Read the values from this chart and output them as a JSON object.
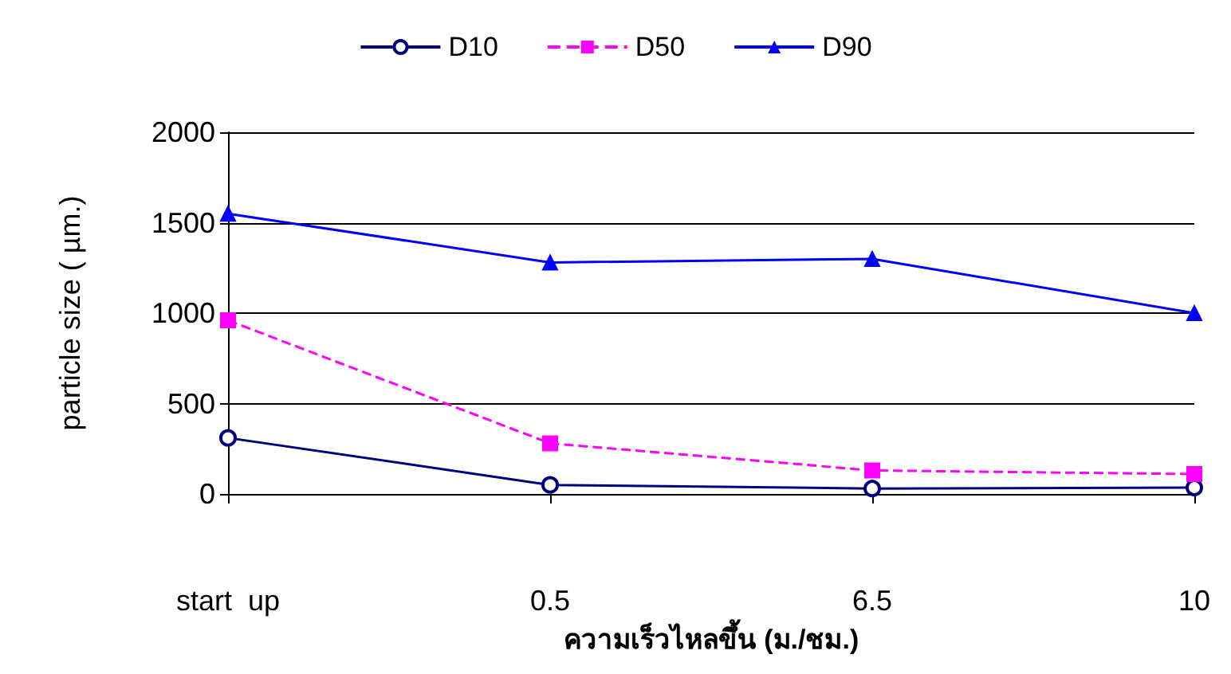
{
  "chart_data": {
    "type": "line",
    "xlabel": "ความเร็วไหลขึ้น (ม./ชม.)",
    "ylabel": "particle size ( µm.)",
    "categories": [
      "start  up",
      "0.5",
      "6.5",
      "10"
    ],
    "series": [
      {
        "name": "D10",
        "color": "#000080",
        "marker": "circle",
        "line_style": "solid",
        "values": [
          310,
          50,
          30,
          35
        ]
      },
      {
        "name": "D50",
        "color": "#ff00ff",
        "marker": "square",
        "line_style": "dashed",
        "values": [
          960,
          280,
          130,
          110
        ]
      },
      {
        "name": "D90",
        "color": "#0000ff",
        "marker": "triangle",
        "line_style": "solid",
        "values": [
          1550,
          1280,
          1300,
          1000
        ]
      }
    ],
    "ylim": [
      0,
      2000
    ],
    "yticks": [
      0,
      500,
      1000,
      1500,
      2000
    ],
    "grid": "y",
    "legend": "top"
  }
}
